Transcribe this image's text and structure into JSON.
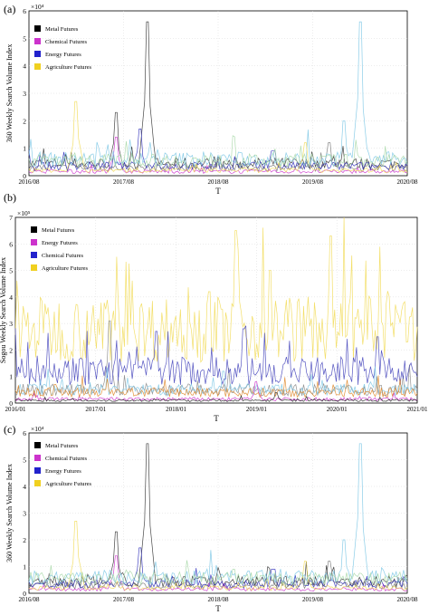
{
  "panels": [
    {
      "label": "(a)"
    },
    {
      "label": "(b)"
    },
    {
      "label": "(c)"
    }
  ],
  "chart_data": [
    {
      "type": "line",
      "ylabel": "360 Weekly Search Volume Index",
      "xlabel": "T",
      "exponent_label": "×10⁴",
      "xlim": [
        "2016/08",
        "2020/08"
      ],
      "ylim": [
        0,
        6
      ],
      "x_ticks": [
        "2016/08",
        "2017/08",
        "2018/08",
        "2019/08",
        "2020/08"
      ],
      "y_ticks": [
        "0",
        "1",
        "2",
        "3",
        "4",
        "5",
        "6"
      ],
      "legend_position": "top-left",
      "legend": [
        {
          "name": "Metal Futures",
          "color": "#000000"
        },
        {
          "name": "Chemical Futures",
          "color": "#cc33cc"
        },
        {
          "name": "Energy Futures",
          "color": "#2222cc"
        },
        {
          "name": "Agriculture Futures",
          "color": "#f0d020"
        }
      ],
      "series": [
        {
          "group": "Metal Futures",
          "color": "#333333",
          "peaks": [
            {
              "x": "2017/07",
              "y": 2.3
            },
            {
              "x": "2017/11",
              "y": 5.6
            }
          ],
          "baseline": 0.45
        },
        {
          "group": "Metal Futures",
          "color": "#777777",
          "peaks": [
            {
              "x": "2019/10",
              "y": 1.2
            }
          ],
          "baseline": 0.3
        },
        {
          "group": "Chemical Futures",
          "color": "#cc33cc",
          "peaks": [
            {
              "x": "2017/07",
              "y": 1.4
            }
          ],
          "baseline": 0.15
        },
        {
          "group": "Energy Futures",
          "color": "#3333bb",
          "peaks": [
            {
              "x": "2017/10",
              "y": 1.7
            },
            {
              "x": "2019/03",
              "y": 0.9
            }
          ],
          "baseline": 0.35
        },
        {
          "group": "Energy Futures",
          "color": "#7ec8e6",
          "peaks": [
            {
              "x": "2020/02",
              "y": 5.6
            },
            {
              "x": "2019/12",
              "y": 2.0
            }
          ],
          "baseline": 0.6
        },
        {
          "group": "Agriculture Futures",
          "color": "#f2dc5a",
          "peaks": [
            {
              "x": "2017/02",
              "y": 2.7
            },
            {
              "x": "2019/07",
              "y": 1.2
            }
          ],
          "baseline": 0.2
        },
        {
          "group": "Agriculture Futures",
          "color": "#a8d8a8",
          "peaks": [
            {
              "x": "2018/10",
              "y": 0.9
            }
          ],
          "baseline": 0.55
        }
      ]
    },
    {
      "type": "line",
      "ylabel": "Sogou Weekly Search Volume Index",
      "xlabel": "T",
      "exponent_label": "×10⁵",
      "xlim": [
        "2016/01",
        "2021/01"
      ],
      "ylim": [
        0,
        7
      ],
      "x_ticks": [
        "2016/01",
        "2017/01",
        "2018/01",
        "2019/01",
        "2020/01",
        "2021/01"
      ],
      "y_ticks": [
        "0",
        "1",
        "2",
        "3",
        "4",
        "5",
        "6",
        "7"
      ],
      "legend_position": "top-left",
      "legend": [
        {
          "name": "Metal Futures",
          "color": "#000000"
        },
        {
          "name": "Energy Futures",
          "color": "#cc33cc"
        },
        {
          "name": "Chemical Futures",
          "color": "#2222cc"
        },
        {
          "name": "Agriculture Futures",
          "color": "#f0d020"
        }
      ],
      "series": [
        {
          "group": "Agriculture Futures",
          "color": "#f2dc5a",
          "peaks": [
            {
              "x": "2018/10",
              "y": 6.5
            },
            {
              "x": "2019/12",
              "y": 6.3
            },
            {
              "x": "2018/06",
              "y": 4.2
            },
            {
              "x": "2019/03",
              "y": 5.0
            }
          ],
          "baseline": 2.8
        },
        {
          "group": "Metal Futures",
          "color": "#888888",
          "peaks": [
            {
              "x": "2017/03",
              "y": 3.1
            }
          ],
          "baseline": 0.5
        },
        {
          "group": "Chemical Futures",
          "color": "#4444bb",
          "peaks": [
            {
              "x": "2018/11",
              "y": 2.8
            },
            {
              "x": "2020/07",
              "y": 2.5
            },
            {
              "x": "2017/10",
              "y": 2.7
            }
          ],
          "baseline": 1.2
        },
        {
          "group": "Chemical Futures",
          "color": "#7ec8e6",
          "peaks": [
            {
              "x": "2018/08",
              "y": 1.2
            }
          ],
          "baseline": 0.5
        },
        {
          "group": "Energy Futures",
          "color": "#cc33cc",
          "peaks": [
            {
              "x": "2019/01",
              "y": 0.8
            }
          ],
          "baseline": 0.15
        },
        {
          "group": "Metal Futures",
          "color": "#e08a2c",
          "peaks": [
            {
              "x": "2016/07",
              "y": 0.7
            }
          ],
          "baseline": 0.4
        },
        {
          "group": "Metal Futures",
          "color": "#222222",
          "peaks": [
            {
              "x": "2019/04",
              "y": 0.4
            }
          ],
          "baseline": 0.1
        }
      ]
    },
    {
      "type": "line",
      "ylabel": "360 Weekly Search Volume Index",
      "xlabel": "T",
      "exponent_label": "×10⁴",
      "xlim": [
        "2016/08",
        "2020/08"
      ],
      "ylim": [
        0,
        6
      ],
      "x_ticks": [
        "2016/08",
        "2017/08",
        "2018/08",
        "2019/08",
        "2020/08"
      ],
      "y_ticks": [
        "0",
        "1",
        "2",
        "3",
        "4",
        "5",
        "6"
      ],
      "legend_position": "top-left",
      "legend": [
        {
          "name": "Metal Futures",
          "color": "#000000"
        },
        {
          "name": "Chemical Futures",
          "color": "#cc33cc"
        },
        {
          "name": "Energy Futures",
          "color": "#2222cc"
        },
        {
          "name": "Agriculture Futures",
          "color": "#f0d020"
        }
      ],
      "series": [
        {
          "group": "Metal Futures",
          "color": "#333333",
          "peaks": [
            {
              "x": "2017/07",
              "y": 2.3
            },
            {
              "x": "2017/11",
              "y": 5.6
            }
          ],
          "baseline": 0.45
        },
        {
          "group": "Metal Futures",
          "color": "#777777",
          "peaks": [
            {
              "x": "2019/10",
              "y": 1.2
            }
          ],
          "baseline": 0.3
        },
        {
          "group": "Chemical Futures",
          "color": "#cc33cc",
          "peaks": [
            {
              "x": "2017/07",
              "y": 1.4
            }
          ],
          "baseline": 0.15
        },
        {
          "group": "Energy Futures",
          "color": "#3333bb",
          "peaks": [
            {
              "x": "2017/10",
              "y": 1.7
            },
            {
              "x": "2019/03",
              "y": 0.9
            }
          ],
          "baseline": 0.35
        },
        {
          "group": "Energy Futures",
          "color": "#7ec8e6",
          "peaks": [
            {
              "x": "2020/02",
              "y": 5.6
            },
            {
              "x": "2019/12",
              "y": 2.0
            }
          ],
          "baseline": 0.6
        },
        {
          "group": "Agriculture Futures",
          "color": "#f2dc5a",
          "peaks": [
            {
              "x": "2017/02",
              "y": 2.7
            },
            {
              "x": "2019/07",
              "y": 1.2
            }
          ],
          "baseline": 0.2
        },
        {
          "group": "Agriculture Futures",
          "color": "#a8d8a8",
          "peaks": [
            {
              "x": "2018/10",
              "y": 0.9
            }
          ],
          "baseline": 0.55
        }
      ]
    }
  ]
}
